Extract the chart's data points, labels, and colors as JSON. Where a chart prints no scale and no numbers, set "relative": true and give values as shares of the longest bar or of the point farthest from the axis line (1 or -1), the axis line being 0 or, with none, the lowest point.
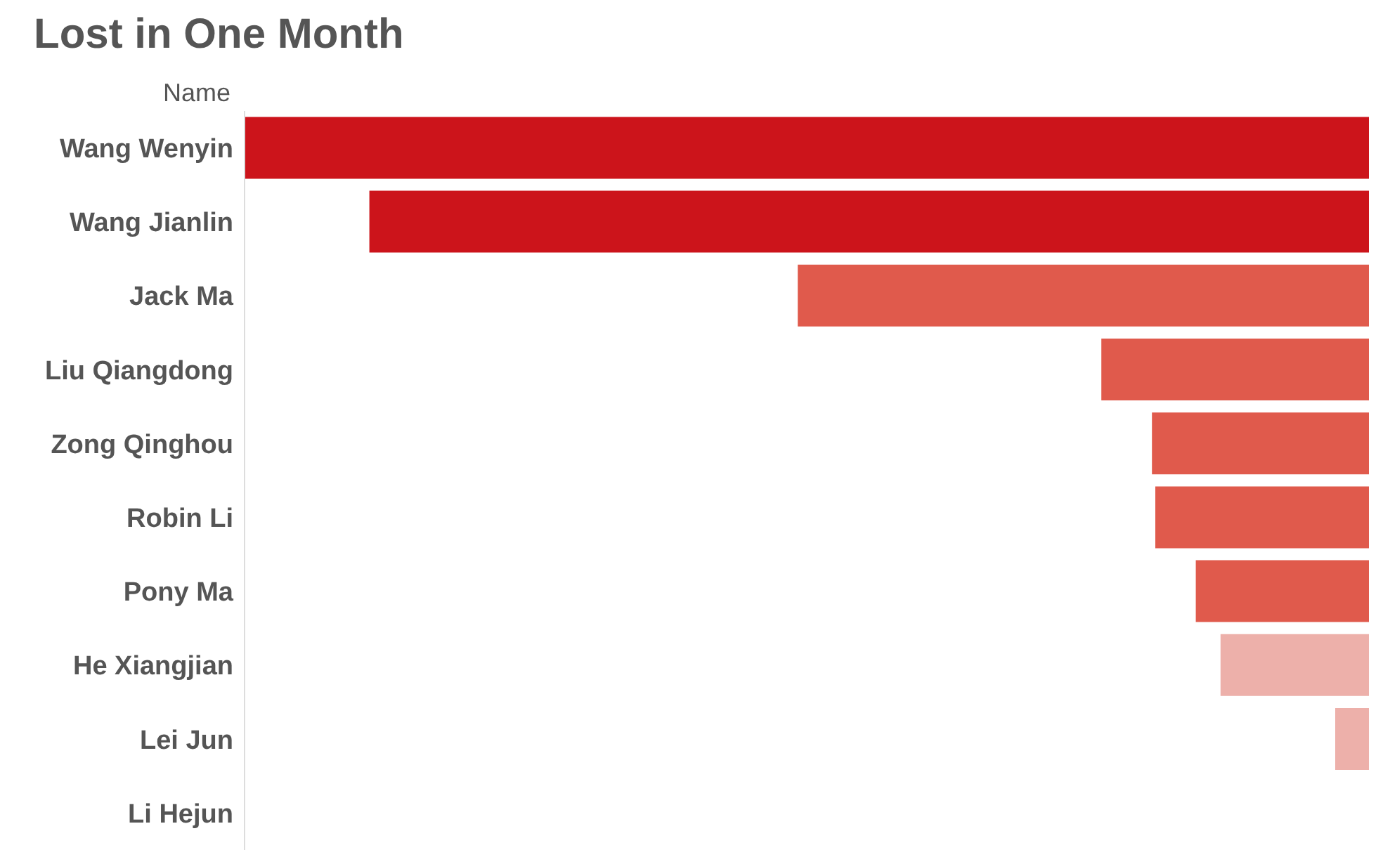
{
  "chart_data": {
    "type": "bar",
    "orientation": "horizontal",
    "title": "Lost in One Month",
    "ylabel": "Name",
    "relative": true,
    "categories": [
      "Wang Wenyin",
      "Wang Jianlin",
      "Jack Ma",
      "Liu Qiangdong",
      "Zong Qinghou",
      "Robin Li",
      "Pony Ma",
      "He Xiangjian",
      "Lei Jun",
      "Li Hejun"
    ],
    "values": [
      -1,
      -0.889,
      -0.508,
      -0.238,
      -0.193,
      -0.19,
      -0.154,
      -0.132,
      -0.03,
      0
    ],
    "colors": [
      "#cc141b",
      "#cc141b",
      "#e05a4c",
      "#e05a4c",
      "#e05a4c",
      "#e05a4c",
      "#e05a4c",
      "#edb0aa",
      "#edb0aa",
      "#edb0aa"
    ]
  }
}
